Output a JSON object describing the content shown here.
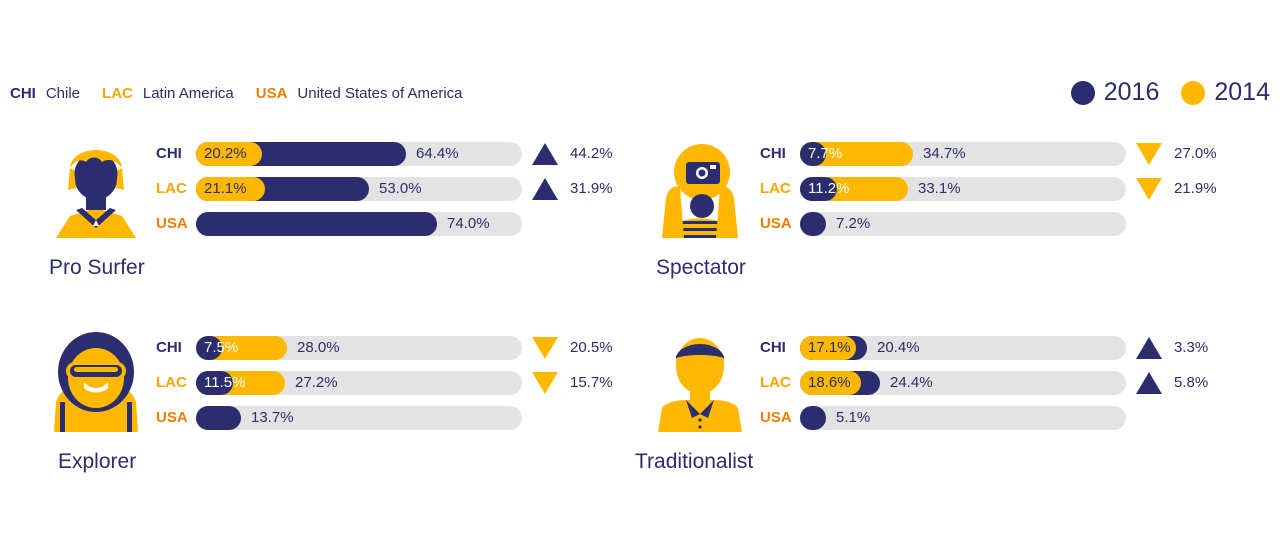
{
  "legend": {
    "regions": [
      {
        "code": "CHI",
        "name": "Chile",
        "color": "#2b2d6e"
      },
      {
        "code": "LAC",
        "name": "Latin America",
        "color": "#f5a800"
      },
      {
        "code": "USA",
        "name": "United States of America",
        "color": "#f07d00"
      }
    ],
    "years": [
      {
        "label": "2016",
        "color": "#2b2d6e"
      },
      {
        "label": "2014",
        "color": "#ffb800"
      }
    ]
  },
  "colors": {
    "navy": "#2b2d6e",
    "gold": "#ffb800",
    "track": "#e3e3e3",
    "up_arrow": "#2b2d6e",
    "down_arrow": "#ffb800"
  },
  "chart_data": [
    {
      "type": "bar",
      "title": "Pro Surfer",
      "icon": "pro-surfer-avatar-icon",
      "categories": [
        "CHI",
        "LAC",
        "USA"
      ],
      "series": [
        {
          "name": "2016",
          "values": [
            64.4,
            53.0,
            74.0
          ]
        },
        {
          "name": "2014",
          "values": [
            20.2,
            21.1,
            null
          ]
        }
      ],
      "labels_2016": [
        "64.4%",
        "53.0%",
        "74.0%"
      ],
      "labels_2014": [
        "20.2%",
        "21.1%",
        ""
      ],
      "change": [
        44.2,
        31.9,
        null
      ],
      "change_labels": [
        "44.2%",
        "31.9%",
        ""
      ],
      "direction": [
        "up",
        "up",
        ""
      ],
      "ylim": [
        0,
        100
      ]
    },
    {
      "type": "bar",
      "title": "Spectator",
      "icon": "spectator-avatar-icon",
      "categories": [
        "CHI",
        "LAC",
        "USA"
      ],
      "series": [
        {
          "name": "2016",
          "values": [
            7.7,
            11.2,
            7.2
          ]
        },
        {
          "name": "2014",
          "values": [
            34.7,
            33.1,
            null
          ]
        }
      ],
      "labels_2016": [
        "7.7%",
        "11.2%",
        "7.2%"
      ],
      "labels_2014": [
        "34.7%",
        "33.1%",
        ""
      ],
      "change": [
        27.0,
        21.9,
        null
      ],
      "change_labels": [
        "27.0%",
        "21.9%",
        ""
      ],
      "direction": [
        "down",
        "down",
        ""
      ],
      "ylim": [
        0,
        100
      ]
    },
    {
      "type": "bar",
      "title": "Explorer",
      "icon": "explorer-avatar-icon",
      "categories": [
        "CHI",
        "LAC",
        "USA"
      ],
      "series": [
        {
          "name": "2016",
          "values": [
            7.5,
            11.5,
            13.7
          ]
        },
        {
          "name": "2014",
          "values": [
            28.0,
            27.2,
            null
          ]
        }
      ],
      "labels_2016": [
        "7.5%",
        "11.5%",
        "13.7%"
      ],
      "labels_2014": [
        "28.0%",
        "27.2%",
        ""
      ],
      "change": [
        20.5,
        15.7,
        null
      ],
      "change_labels": [
        "20.5%",
        "15.7%",
        ""
      ],
      "direction": [
        "down",
        "down",
        ""
      ],
      "ylim": [
        0,
        100
      ]
    },
    {
      "type": "bar",
      "title": "Traditionalist",
      "icon": "traditionalist-avatar-icon",
      "categories": [
        "CHI",
        "LAC",
        "USA"
      ],
      "series": [
        {
          "name": "2016",
          "values": [
            20.4,
            24.4,
            5.1
          ]
        },
        {
          "name": "2014",
          "values": [
            17.1,
            18.6,
            null
          ]
        }
      ],
      "labels_2016": [
        "20.4%",
        "24.4%",
        "5.1%"
      ],
      "labels_2014": [
        "17.1%",
        "18.6%",
        ""
      ],
      "change": [
        3.3,
        5.8,
        null
      ],
      "change_labels": [
        "3.3%",
        "5.8%",
        ""
      ],
      "direction": [
        "up",
        "up",
        ""
      ],
      "ylim": [
        0,
        100
      ]
    }
  ]
}
